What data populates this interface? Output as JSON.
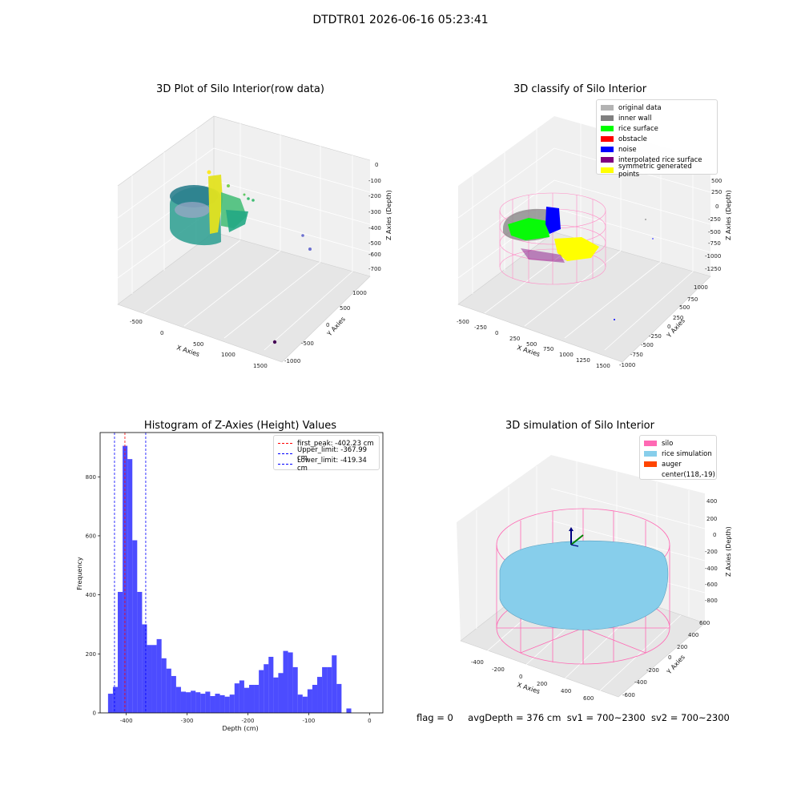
{
  "suptitle": "DTDTR01 2026-06-16 05:23:41",
  "panels": {
    "raw": {
      "title": "3D Plot of Silo Interior(row data)",
      "xlabel": "X Axies",
      "ylabel": "Y Axies",
      "zlabel": "Z Axies (Depth)",
      "xticks": [
        "-500",
        "0",
        "500",
        "1000",
        "1500"
      ],
      "yticks": [
        "1000",
        "500",
        "0",
        "-500",
        "-1000"
      ],
      "zticks": [
        "0",
        "-100",
        "-200",
        "-300",
        "-400",
        "-500",
        "-600",
        "-700"
      ],
      "colormap": [
        "#440154",
        "#2a788e",
        "#22a884",
        "#7ad151",
        "#fde725"
      ]
    },
    "classify": {
      "title": "3D classify of Silo Interior",
      "xlabel": "X Axies",
      "ylabel": "Y Axies",
      "zlabel": "Z Axies (Depth)",
      "xticks": [
        "-500",
        "-250",
        "0",
        "250",
        "500",
        "750",
        "1000",
        "1250",
        "1500"
      ],
      "yticks": [
        "1000",
        "750",
        "500",
        "250",
        "0",
        "-250",
        "-500",
        "-750",
        "-1000"
      ],
      "zticks": [
        "500",
        "250",
        "0",
        "-250",
        "-500",
        "-750",
        "-1000",
        "-1250"
      ],
      "legend": [
        {
          "label": "original data",
          "color": "#b3b3b3"
        },
        {
          "label": "inner wall",
          "color": "#808080"
        },
        {
          "label": "rice surface",
          "color": "#00ff00"
        },
        {
          "label": "obstacle",
          "color": "#ff0000"
        },
        {
          "label": "noise",
          "color": "#0000ff"
        },
        {
          "label": "interpolated rice surface",
          "color": "#800080"
        },
        {
          "label": "symmetric generated points",
          "color": "#ffff00"
        }
      ]
    },
    "histogram": {
      "title": "Histogram of Z-Axies (Height) Values",
      "xlabel": "Depth (cm)",
      "ylabel": "Frequency",
      "legend": [
        {
          "label": "first_peak: -402.23 cm",
          "color": "#ff0000"
        },
        {
          "label": "Upper_limit: -367.99 cm",
          "color": "#0000ff"
        },
        {
          "label": "Lower_limit: -419.34 cm",
          "color": "#0000ff"
        }
      ]
    },
    "simulation": {
      "title": "3D simulation of Silo Interior",
      "xlabel": "X Axies",
      "ylabel": "Y Axies",
      "zlabel": "Z Axies (Depth)",
      "xticks": [
        "-400",
        "-200",
        "0",
        "200",
        "400",
        "600"
      ],
      "yticks": [
        "600",
        "400",
        "200",
        "0",
        "-200",
        "-400",
        "-600"
      ],
      "zticks": [
        "400",
        "200",
        "0",
        "-200",
        "-400",
        "-600",
        "-800"
      ],
      "legend": [
        {
          "label": "silo",
          "color": "#ff69b4"
        },
        {
          "label": "rice simulation",
          "color": "#87ceeb"
        },
        {
          "label": "auger",
          "color": "#ff4500"
        },
        {
          "label": "center(118,-19)",
          "color": ""
        }
      ]
    }
  },
  "footer": {
    "flag": "flag = 0",
    "avg_depth": "avgDepth = 376 cm",
    "sv1": "sv1 = 700~2300",
    "sv2": "sv2 = 700~2300"
  },
  "chart_data": [
    {
      "type": "scatter",
      "title": "3D Plot of Silo Interior(row data)",
      "note": "3D point cloud; axis ranges only",
      "xlabel": "X Axies",
      "ylabel": "Y Axies",
      "zlabel": "Z Axies (Depth)",
      "xlim": [
        -600,
        1700
      ],
      "ylim": [
        -1100,
        1100
      ],
      "zlim": [
        -720,
        20
      ]
    },
    {
      "type": "scatter",
      "title": "3D classify of Silo Interior",
      "xlabel": "X Axies",
      "ylabel": "Y Axies",
      "zlabel": "Z Axies (Depth)",
      "xlim": [
        -600,
        1600
      ],
      "ylim": [
        -1050,
        1100
      ],
      "zlim": [
        -1300,
        550
      ],
      "series": [
        {
          "name": "original data"
        },
        {
          "name": "inner wall"
        },
        {
          "name": "rice surface"
        },
        {
          "name": "obstacle"
        },
        {
          "name": "noise"
        },
        {
          "name": "interpolated rice surface"
        },
        {
          "name": "symmetric generated points"
        }
      ]
    },
    {
      "type": "bar",
      "title": "Histogram of Z-Axies (Height) Values",
      "xlabel": "Depth (cm)",
      "ylabel": "Frequency",
      "xlim": [
        -443,
        22
      ],
      "ylim": [
        0,
        950
      ],
      "xticks": [
        -400,
        -300,
        -200,
        -100,
        0
      ],
      "yticks": [
        0,
        200,
        400,
        600,
        800
      ],
      "bin_width": 8.0,
      "bin_start": -430,
      "values": [
        65,
        88,
        410,
        905,
        860,
        585,
        410,
        300,
        230,
        230,
        250,
        185,
        150,
        125,
        88,
        72,
        70,
        75,
        70,
        65,
        72,
        57,
        65,
        60,
        55,
        62,
        100,
        110,
        85,
        95,
        95,
        145,
        165,
        190,
        120,
        135,
        210,
        205,
        155,
        62,
        55,
        80,
        95,
        122,
        155,
        155,
        195,
        98,
        0,
        15
      ],
      "vlines": [
        {
          "x": -402.23,
          "label": "first_peak: -402.23 cm",
          "color": "#ff0000"
        },
        {
          "x": -367.99,
          "label": "Upper_limit: -367.99 cm",
          "color": "#0000ff"
        },
        {
          "x": -419.34,
          "label": "Lower_limit: -419.34 cm",
          "color": "#0000ff"
        }
      ]
    },
    {
      "type": "scatter",
      "title": "3D simulation of Silo Interior",
      "xlabel": "X Axies",
      "ylabel": "Y Axies",
      "zlabel": "Z Axies (Depth)",
      "xlim": [
        -500,
        700
      ],
      "ylim": [
        -700,
        700
      ],
      "zlim": [
        -900,
        450
      ],
      "series": [
        {
          "name": "silo"
        },
        {
          "name": "rice simulation"
        },
        {
          "name": "auger"
        }
      ]
    }
  ]
}
